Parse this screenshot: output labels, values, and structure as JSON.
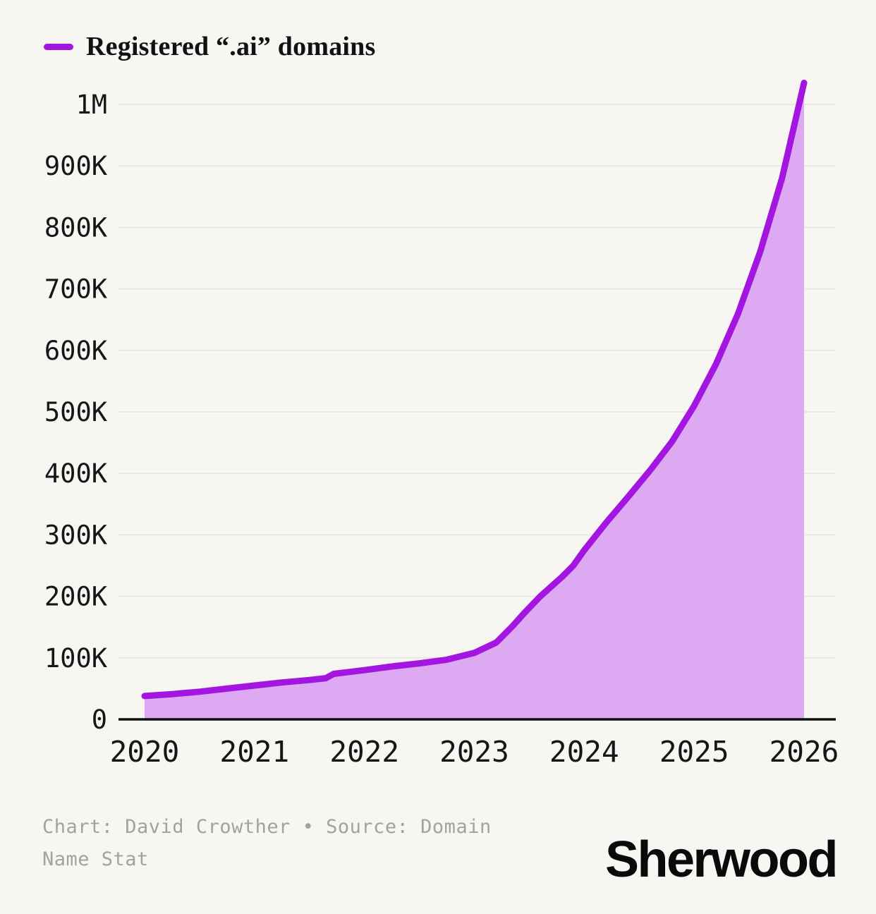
{
  "page": {
    "background": "#f7f6f3"
  },
  "legend": {
    "label": "Registered “.ai” domains"
  },
  "colors": {
    "accent": "#a316e0",
    "area_fill": "#dca9f2",
    "grid": "#e5e4e1",
    "axis": "#111111",
    "tick_text": "#161616",
    "muted_text": "#a3a2a0"
  },
  "chart_data": {
    "type": "area",
    "title": "Registered “.ai” domains",
    "xlabel": "",
    "ylabel": "",
    "xlim": [
      2020,
      2026
    ],
    "ylim": [
      0,
      1040000
    ],
    "grid": "horizontal",
    "legend_position": "top-left",
    "x_ticks": [
      "2020",
      "2021",
      "2022",
      "2023",
      "2024",
      "2025",
      "2026"
    ],
    "y_ticks": [
      {
        "value": 0,
        "label": "0"
      },
      {
        "value": 100000,
        "label": "100K"
      },
      {
        "value": 200000,
        "label": "200K"
      },
      {
        "value": 300000,
        "label": "300K"
      },
      {
        "value": 400000,
        "label": "400K"
      },
      {
        "value": 500000,
        "label": "500K"
      },
      {
        "value": 600000,
        "label": "600K"
      },
      {
        "value": 700000,
        "label": "700K"
      },
      {
        "value": 800000,
        "label": "800K"
      },
      {
        "value": 900000,
        "label": "900K"
      },
      {
        "value": 1000000,
        "label": "1M"
      }
    ],
    "series": [
      {
        "name": "Registered “.ai” domains",
        "color": "#a316e0",
        "fill": "#dca9f2",
        "points": [
          [
            2020.0,
            38000
          ],
          [
            2020.25,
            41000
          ],
          [
            2020.5,
            45000
          ],
          [
            2020.75,
            50000
          ],
          [
            2021.0,
            55000
          ],
          [
            2021.25,
            60000
          ],
          [
            2021.5,
            64000
          ],
          [
            2021.65,
            67000
          ],
          [
            2021.72,
            74000
          ],
          [
            2022.0,
            80000
          ],
          [
            2022.25,
            86000
          ],
          [
            2022.5,
            91000
          ],
          [
            2022.75,
            97000
          ],
          [
            2023.0,
            108000
          ],
          [
            2023.2,
            125000
          ],
          [
            2023.35,
            152000
          ],
          [
            2023.45,
            172000
          ],
          [
            2023.6,
            200000
          ],
          [
            2023.8,
            232000
          ],
          [
            2023.9,
            250000
          ],
          [
            2024.0,
            275000
          ],
          [
            2024.2,
            320000
          ],
          [
            2024.4,
            362000
          ],
          [
            2024.6,
            405000
          ],
          [
            2024.8,
            452000
          ],
          [
            2025.0,
            510000
          ],
          [
            2025.2,
            578000
          ],
          [
            2025.4,
            660000
          ],
          [
            2025.6,
            760000
          ],
          [
            2025.8,
            880000
          ],
          [
            2026.0,
            1035000
          ]
        ]
      }
    ]
  },
  "footer": {
    "credit": "Chart: David Crowther • Source: Domain Name Stat",
    "logo": "Sherwood"
  }
}
